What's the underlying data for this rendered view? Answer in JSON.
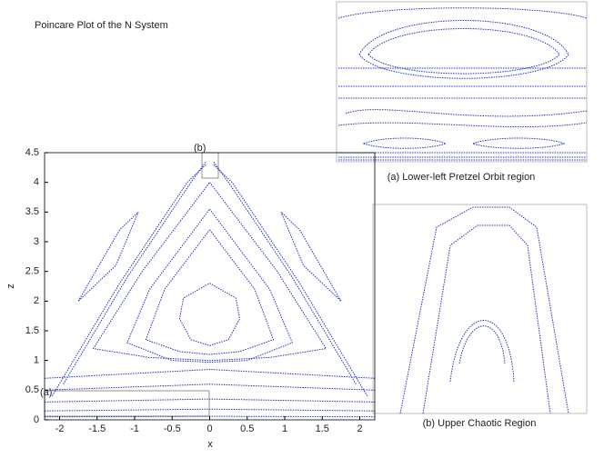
{
  "chart_data": {
    "type": "line",
    "title": "Poincare Plot of the N System",
    "x_label": "x",
    "y_label": "z",
    "annotations": [
      "(a)",
      "(b)"
    ],
    "xlim": [
      -2.2,
      2.2
    ],
    "xticks": [
      -2,
      -1.5,
      -1,
      -0.5,
      0,
      0.5,
      1,
      1.5,
      2
    ],
    "ylim": [
      0,
      4.5
    ],
    "yticks": [
      0,
      0.5,
      1,
      1.5,
      2,
      2.5,
      3,
      3.5,
      4,
      4.5
    ],
    "series": [
      {
        "color": "#1f2fc8",
        "x": [
          0,
          0.35,
          0.4,
          0.25,
          0,
          -0.25,
          -0.4,
          -0.35,
          0
        ],
        "values": [
          2.3,
          2.05,
          1.7,
          1.35,
          1.25,
          1.35,
          1.7,
          2.05,
          2.3
        ]
      },
      {
        "color": "#1f2fc8",
        "x": [
          0,
          0.6,
          0.85,
          0.4,
          0,
          -0.4,
          -0.85,
          -0.6,
          0
        ],
        "values": [
          3.2,
          2.2,
          1.35,
          1.15,
          1.1,
          1.15,
          1.35,
          2.2,
          3.2
        ]
      },
      {
        "color": "#1f2fc8",
        "x": [
          0,
          0.8,
          1.1,
          0.5,
          0,
          -0.5,
          -1.1,
          -0.8,
          0
        ],
        "values": [
          3.55,
          2.2,
          1.3,
          1.0,
          0.97,
          1.0,
          1.3,
          2.2,
          3.55
        ]
      },
      {
        "color": "#1f2fc8",
        "x": [
          0,
          0.9,
          1.55,
          0.8,
          0,
          -0.8,
          -1.55,
          -0.9,
          0
        ],
        "values": [
          4.0,
          2.5,
          1.2,
          1.05,
          1.0,
          1.05,
          1.2,
          2.5,
          4.0
        ]
      },
      {
        "color": "#1f2fc8",
        "x": [
          -2.1,
          -1.2,
          -0.3,
          -0.05
        ],
        "values": [
          0.4,
          2.3,
          4.0,
          4.3
        ]
      },
      {
        "color": "#1f2fc8",
        "x": [
          -1.95,
          -1.1,
          -0.25,
          -0.05
        ],
        "values": [
          0.6,
          2.4,
          4.0,
          4.35
        ]
      },
      {
        "color": "#1f2fc8",
        "x": [
          2.1,
          1.2,
          0.3,
          0.05
        ],
        "values": [
          0.4,
          2.3,
          4.0,
          4.3
        ]
      },
      {
        "color": "#1f2fc8",
        "x": [
          1.95,
          1.1,
          0.25,
          0.05
        ],
        "values": [
          0.6,
          2.4,
          4.0,
          4.35
        ]
      },
      {
        "color": "#1f2fc8",
        "x": [
          -1.75,
          -1.2,
          -0.95,
          -1.25,
          -1.75
        ],
        "values": [
          2.0,
          3.2,
          3.5,
          2.6,
          2.0
        ]
      },
      {
        "color": "#1f2fc8",
        "x": [
          1.75,
          1.2,
          0.95,
          1.25,
          1.75
        ],
        "values": [
          2.0,
          3.2,
          3.5,
          2.6,
          2.0
        ]
      },
      {
        "color": "#1f2fc8",
        "x": [
          -2.2,
          0,
          2.2
        ],
        "values": [
          0.7,
          0.85,
          0.7
        ]
      },
      {
        "color": "#1f2fc8",
        "x": [
          -2.2,
          0,
          2.2
        ],
        "values": [
          0.5,
          0.6,
          0.5
        ]
      },
      {
        "color": "#1f2fc8",
        "x": [
          -2.2,
          0,
          2.2
        ],
        "values": [
          0.3,
          0.35,
          0.3
        ]
      },
      {
        "color": "#1f2fc8",
        "x": [
          -2.2,
          0,
          2.2
        ],
        "values": [
          0.15,
          0.18,
          0.15
        ]
      },
      {
        "color": "#1f2fc8",
        "x": [
          -2.2,
          0,
          2.2
        ],
        "values": [
          0.05,
          0.06,
          0.05
        ]
      }
    ]
  },
  "insets": [
    {
      "caption": "(a) Lower-left Pretzel Orbit region"
    },
    {
      "caption": "(b) Upper Chaotic Region"
    }
  ]
}
